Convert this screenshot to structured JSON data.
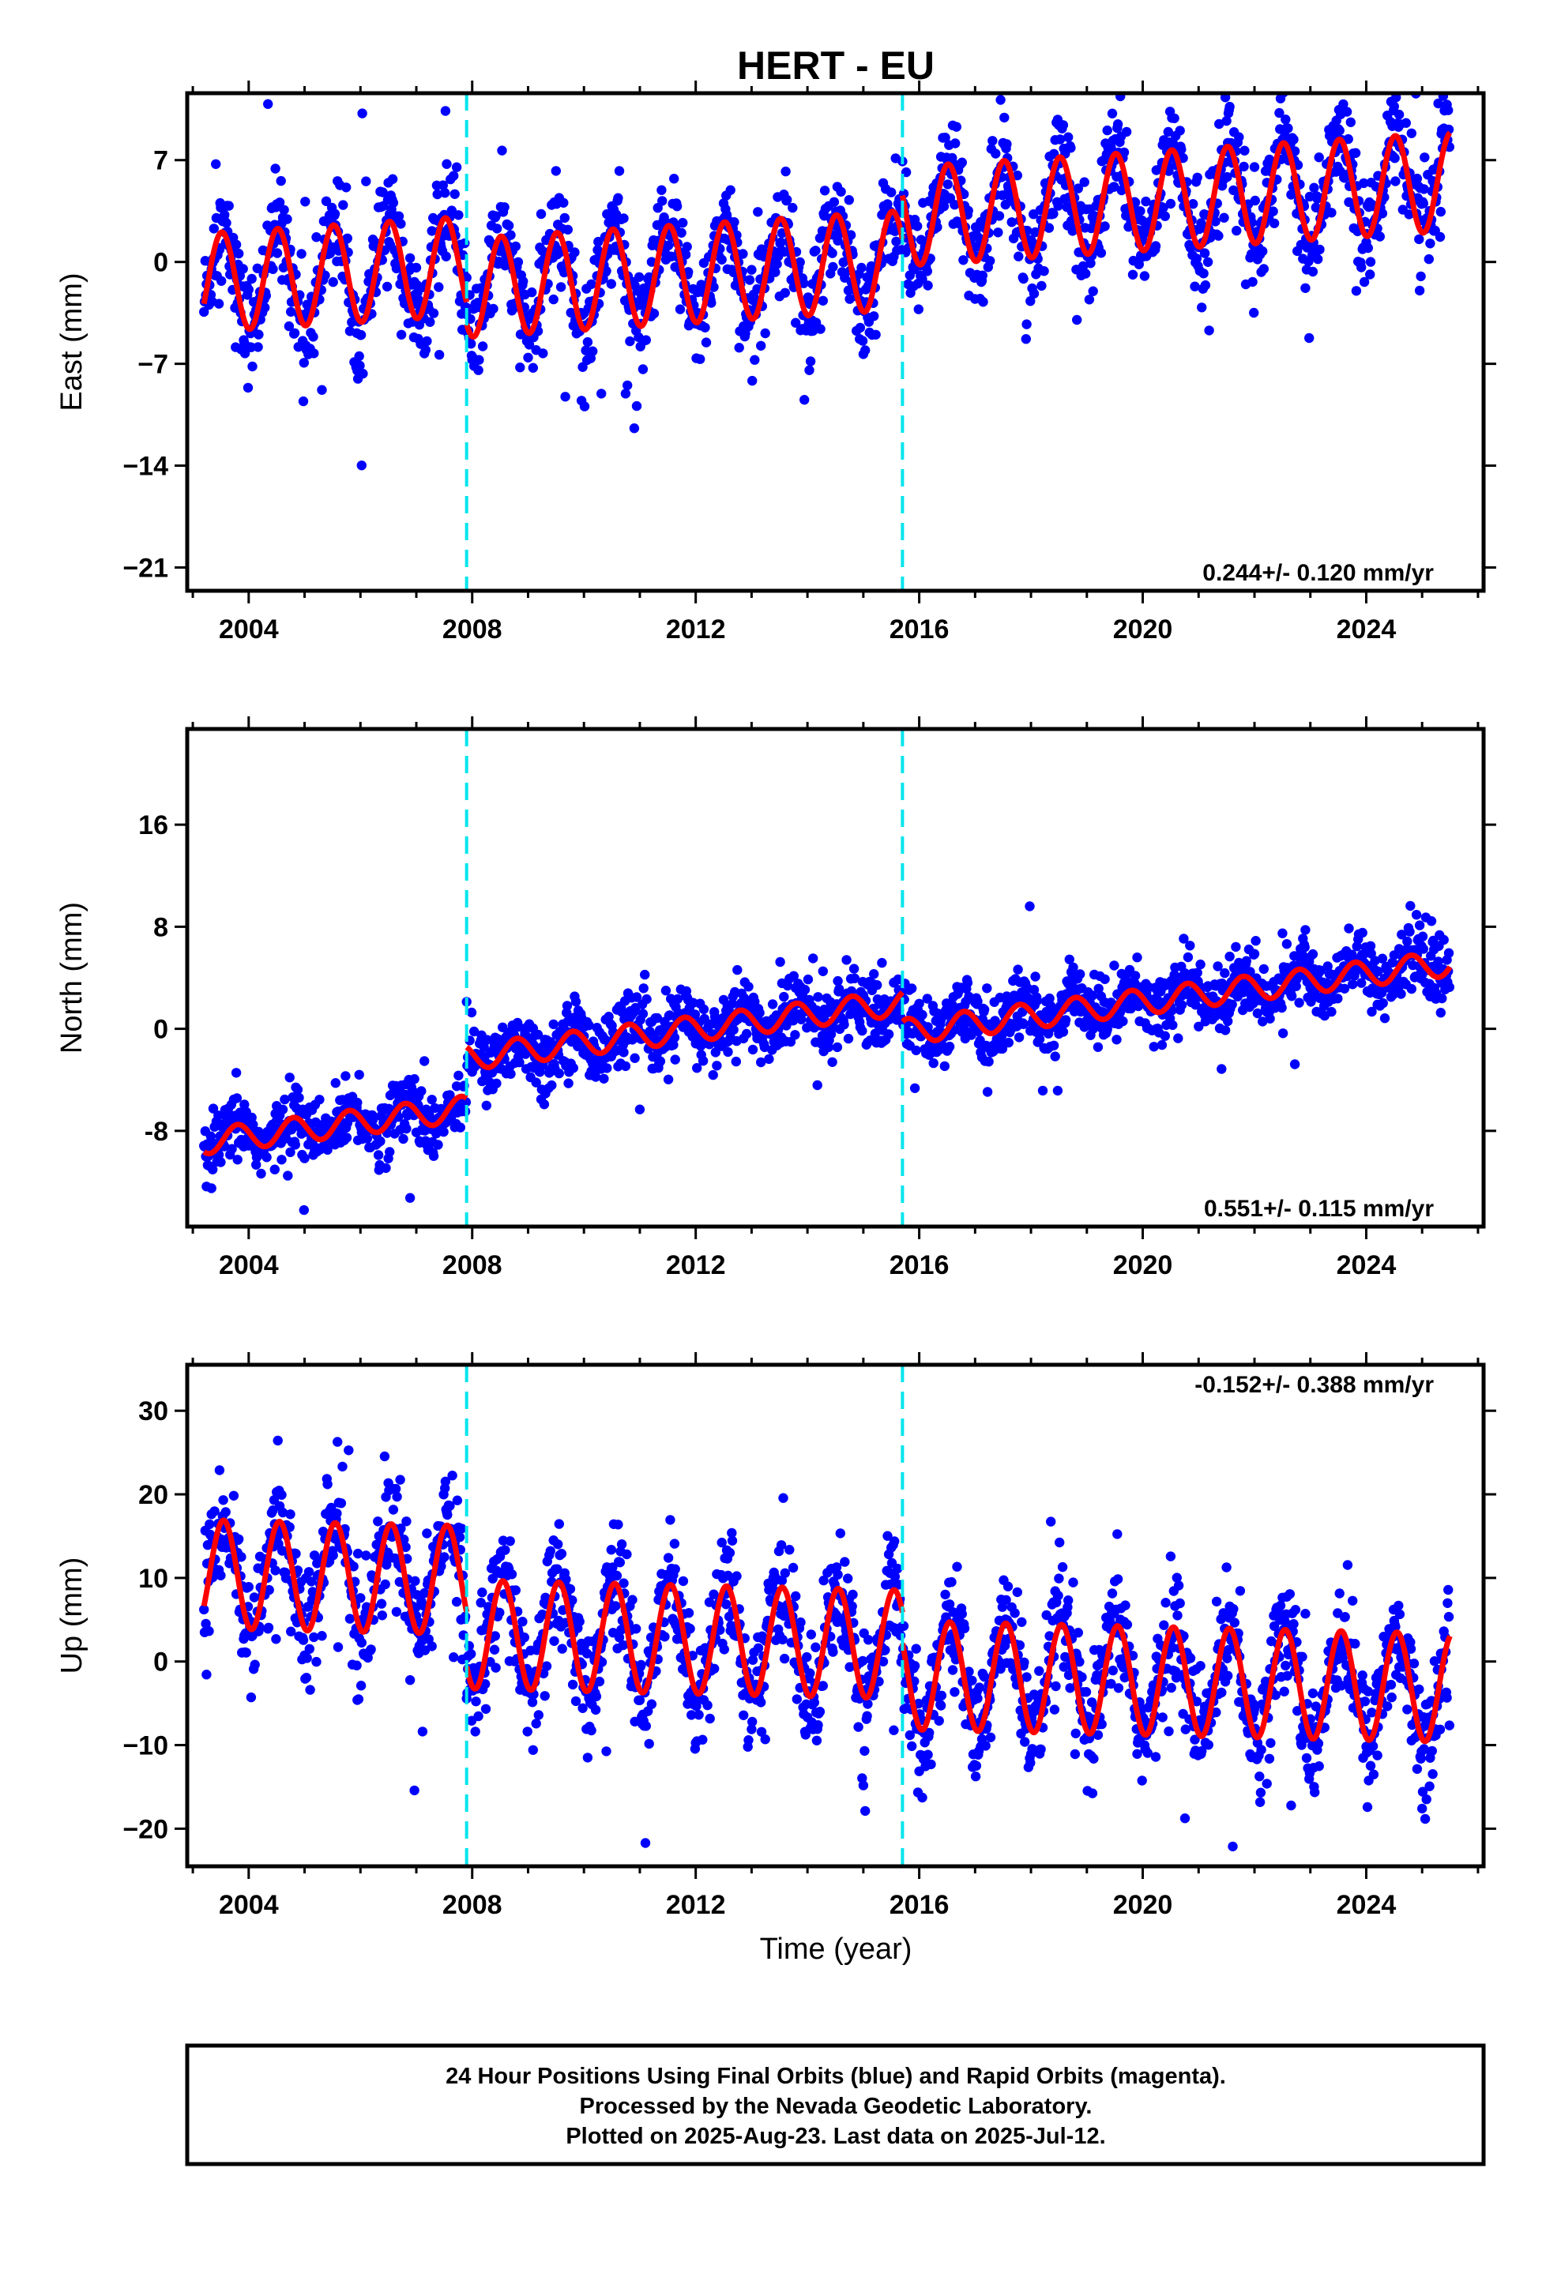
{
  "title": "HERT - EU",
  "xlabel": "Time (year)",
  "footer": [
    "24 Hour Positions Using Final Orbits (blue) and Rapid Orbits (magenta).",
    "Processed by the Nevada Geodetic Laboratory.",
    "Plotted on 2025-Aug-23. Last data on 2025-Jul-12."
  ],
  "colors": {
    "points": "#0000ff",
    "model": "#ff0000",
    "steps": "#00e5ee",
    "frame": "#000000"
  },
  "chart_data": [
    {
      "type": "scatter",
      "component": "east",
      "ylabel": "East (mm)",
      "rate_label": "0.244+/- 0.120 mm/yr",
      "xlim": [
        2002.9,
        2026.1
      ],
      "ylim": [
        -22.6,
        11.6
      ],
      "x_ticks": [
        2004,
        2008,
        2012,
        2016,
        2020,
        2024
      ],
      "x_tick_labels": [
        "2004",
        "2008",
        "2012",
        "2016",
        "2020",
        "2024"
      ],
      "y_ticks": [
        7,
        0,
        -7,
        -14,
        -21
      ],
      "y_tick_labels": [
        "7",
        "0",
        "−7",
        "−14",
        "−21"
      ],
      "equipment_changes": [
        2007.9,
        2015.7
      ],
      "model": {
        "start": 2003.2,
        "end": 2025.5,
        "segments": [
          {
            "from": 2003.2,
            "to": 2007.9,
            "offset": -1.5,
            "rate": 0.244,
            "amp": 3.4,
            "phase": 2003.27
          },
          {
            "from": 2007.9,
            "to": 2015.7,
            "offset": -3.0,
            "rate": 0.244,
            "amp": 3.4,
            "phase": 2003.27
          },
          {
            "from": 2015.7,
            "to": 2025.5,
            "offset": 0.0,
            "rate": 0.244,
            "amp": 3.4,
            "phase": 2003.27
          }
        ],
        "noise": 1.8
      }
    },
    {
      "type": "scatter",
      "component": "north",
      "ylabel": "North (mm)",
      "rate_label": "0.551+/- 0.115 mm/yr",
      "xlim": [
        2002.9,
        2026.1
      ],
      "ylim": [
        -15.5,
        23.5
      ],
      "x_ticks": [
        2004,
        2008,
        2012,
        2016,
        2020,
        2024
      ],
      "x_tick_labels": [
        "2004",
        "2008",
        "2012",
        "2016",
        "2020",
        "2024"
      ],
      "y_ticks": [
        16,
        8,
        0,
        -8
      ],
      "y_tick_labels": [
        "16",
        "8",
        "0",
        "-8"
      ],
      "equipment_changes": [
        2007.9,
        2015.7
      ],
      "model": {
        "start": 2003.2,
        "end": 2025.5,
        "segments": [
          {
            "from": 2003.2,
            "to": 2007.9,
            "offset": -9.0,
            "rate": 0.551,
            "amp": 1.0,
            "phase": 2003.55
          },
          {
            "from": 2007.9,
            "to": 2015.7,
            "offset": -5.0,
            "rate": 0.551,
            "amp": 1.0,
            "phase": 2003.55
          },
          {
            "from": 2015.7,
            "to": 2025.5,
            "offset": -7.3,
            "rate": 0.551,
            "amp": 1.0,
            "phase": 2003.55
          }
        ],
        "noise": 1.3
      }
    },
    {
      "type": "scatter",
      "component": "up",
      "ylabel": "Up (mm)",
      "rate_label": "-0.152+/- 0.388 mm/yr",
      "xlim": [
        2002.9,
        2026.1
      ],
      "ylim": [
        -24.5,
        35.5
      ],
      "x_ticks": [
        2004,
        2008,
        2012,
        2016,
        2020,
        2024
      ],
      "x_tick_labels": [
        "2004",
        "2008",
        "2012",
        "2016",
        "2020",
        "2024"
      ],
      "y_ticks": [
        30,
        20,
        10,
        0,
        -10,
        -20
      ],
      "y_tick_labels": [
        "30",
        "20",
        "10",
        "0",
        "−10",
        "−20"
      ],
      "equipment_changes": [
        2007.9,
        2015.7
      ],
      "model": {
        "start": 2003.2,
        "end": 2025.5,
        "segments": [
          {
            "from": 2003.2,
            "to": 2007.9,
            "offset": 10.5,
            "rate": -0.152,
            "amp": 6.5,
            "phase": 2003.3
          },
          {
            "from": 2007.9,
            "to": 2015.7,
            "offset": 4.0,
            "rate": -0.152,
            "amp": 6.5,
            "phase": 2003.3
          },
          {
            "from": 2015.7,
            "to": 2025.5,
            "offset": 0.3,
            "rate": -0.152,
            "amp": 6.5,
            "phase": 2003.3
          }
        ],
        "noise": 3.5
      }
    }
  ]
}
